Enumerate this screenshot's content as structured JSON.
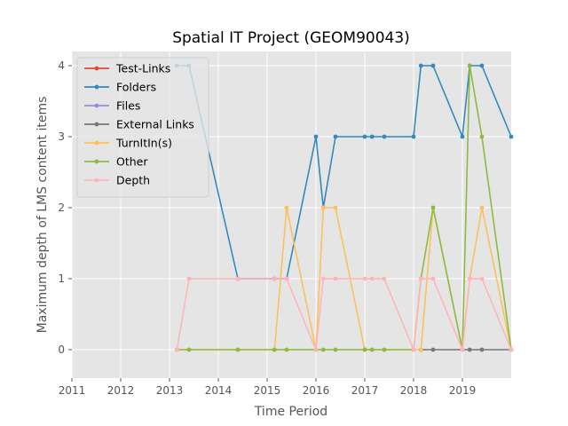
{
  "chart_data": {
    "type": "line",
    "title": "Spatial IT Project (GEOM90043)",
    "xlabel": "Time Period",
    "ylabel": "Maximum depth of LMS content items",
    "xlim": [
      2011.0,
      2020.0
    ],
    "ylim": [
      -0.4,
      4.2
    ],
    "xticks": [
      2011,
      2012,
      2013,
      2014,
      2015,
      2016,
      2017,
      2018,
      2019
    ],
    "yticks": [
      0,
      1,
      2,
      3,
      4
    ],
    "grid": true,
    "legend_position": "upper-left",
    "series": [
      {
        "name": "Test-Links",
        "color": "#E24A33",
        "points": []
      },
      {
        "name": "Folders",
        "color": "#348ABD",
        "points": [
          [
            2013.15,
            4
          ],
          [
            2013.4,
            4
          ],
          [
            2014.4,
            1
          ],
          [
            2015.15,
            1
          ],
          [
            2015.4,
            1
          ],
          [
            2016.0,
            3
          ],
          [
            2016.15,
            2
          ],
          [
            2016.4,
            3
          ],
          [
            2017.0,
            3
          ],
          [
            2017.15,
            3
          ],
          [
            2017.4,
            3
          ],
          [
            2018.0,
            3
          ],
          [
            2018.15,
            4
          ],
          [
            2018.4,
            4
          ],
          [
            2019.0,
            3
          ],
          [
            2019.15,
            4
          ],
          [
            2019.4,
            4
          ],
          [
            2020.0,
            3
          ]
        ]
      },
      {
        "name": "Files",
        "color": "#988ED5",
        "points": []
      },
      {
        "name": "External Links",
        "color": "#777777",
        "points": [
          [
            2018.15,
            0
          ],
          [
            2018.4,
            0
          ],
          [
            2019.0,
            0
          ],
          [
            2019.15,
            0
          ],
          [
            2019.4,
            0
          ],
          [
            2020.0,
            0
          ]
        ]
      },
      {
        "name": "TurnItIn(s)",
        "color": "#FBC15E",
        "points": [
          [
            2013.15,
            0
          ],
          [
            2013.4,
            0
          ],
          [
            2014.4,
            0
          ],
          [
            2015.15,
            0
          ],
          [
            2015.4,
            2
          ],
          [
            2016.0,
            0
          ],
          [
            2016.15,
            2
          ],
          [
            2016.4,
            2
          ],
          [
            2017.0,
            0
          ],
          [
            2017.15,
            0
          ],
          [
            2017.4,
            0
          ],
          [
            2018.0,
            0
          ],
          [
            2018.15,
            0
          ],
          [
            2018.4,
            2
          ],
          [
            2019.0,
            0
          ],
          [
            2019.15,
            1
          ],
          [
            2019.4,
            2
          ],
          [
            2020.0,
            0
          ]
        ]
      },
      {
        "name": "Other",
        "color": "#8EBA42",
        "points": [
          [
            2013.15,
            0
          ],
          [
            2013.4,
            0
          ],
          [
            2014.4,
            0
          ],
          [
            2015.15,
            0
          ],
          [
            2015.4,
            0
          ],
          [
            2016.0,
            0
          ],
          [
            2016.15,
            0
          ],
          [
            2016.4,
            0
          ],
          [
            2017.0,
            0
          ],
          [
            2017.15,
            0
          ],
          [
            2017.4,
            0
          ],
          [
            2018.0,
            0
          ],
          [
            2018.15,
            1
          ],
          [
            2018.4,
            2
          ],
          [
            2019.0,
            0
          ],
          [
            2019.15,
            4
          ],
          [
            2019.4,
            3
          ],
          [
            2020.0,
            0
          ]
        ]
      },
      {
        "name": "Depth",
        "color": "#FFB5B8",
        "points": [
          [
            2013.15,
            0
          ],
          [
            2013.4,
            1
          ],
          [
            2014.4,
            1
          ],
          [
            2015.15,
            1
          ],
          [
            2015.4,
            1
          ],
          [
            2016.0,
            0
          ],
          [
            2016.15,
            1
          ],
          [
            2016.4,
            1
          ],
          [
            2017.0,
            1
          ],
          [
            2017.15,
            1
          ],
          [
            2017.4,
            1
          ],
          [
            2018.0,
            0
          ],
          [
            2018.15,
            1
          ],
          [
            2018.4,
            1
          ],
          [
            2019.0,
            0
          ],
          [
            2019.15,
            1
          ],
          [
            2019.4,
            1
          ],
          [
            2020.0,
            0
          ]
        ]
      }
    ]
  }
}
